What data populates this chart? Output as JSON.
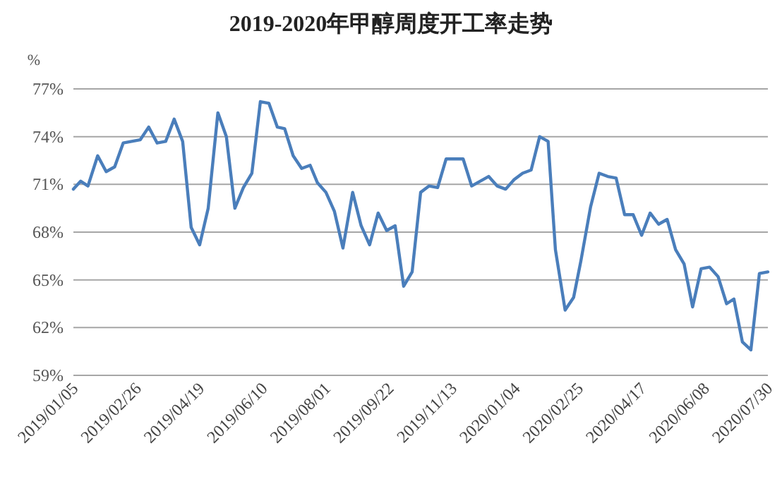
{
  "chart_data": {
    "type": "line",
    "title": "2019-2020年甲醇周度开工率走势",
    "ylabel": "%",
    "color": "#4a7ebb",
    "grid": "y",
    "marker": "none",
    "line_style": "solid",
    "x": [
      "2019-01-05",
      "2019-01-11",
      "2019-01-17",
      "2019-01-25",
      "2019-02-01",
      "2019-02-08",
      "2019-02-15",
      "2019-02-22",
      "2019-03-01",
      "2019-03-08",
      "2019-03-15",
      "2019-03-22",
      "2019-03-29",
      "2019-04-05",
      "2019-04-12",
      "2019-04-19",
      "2019-04-26",
      "2019-05-04",
      "2019-05-11",
      "2019-05-18",
      "2019-05-25",
      "2019-06-01",
      "2019-06-08",
      "2019-06-15",
      "2019-06-22",
      "2019-06-28",
      "2019-07-05",
      "2019-07-12",
      "2019-07-19",
      "2019-07-25",
      "2019-08-01",
      "2019-08-08",
      "2019-08-15",
      "2019-08-23",
      "2019-08-30",
      "2019-09-06",
      "2019-09-13",
      "2019-09-20",
      "2019-09-27",
      "2019-10-04",
      "2019-10-11",
      "2019-10-18",
      "2019-10-25",
      "2019-11-01",
      "2019-11-08",
      "2019-11-15",
      "2019-11-22",
      "2019-11-29",
      "2019-12-06",
      "2019-12-13",
      "2019-12-20",
      "2019-12-27",
      "2020-01-03",
      "2020-01-10",
      "2020-01-17",
      "2020-01-24",
      "2020-01-31",
      "2020-02-06",
      "2020-02-14",
      "2020-02-21",
      "2020-02-27",
      "2020-03-06",
      "2020-03-13",
      "2020-03-20",
      "2020-03-27",
      "2020-04-03",
      "2020-04-10",
      "2020-04-17",
      "2020-04-24",
      "2020-05-01",
      "2020-05-08",
      "2020-05-15",
      "2020-05-22",
      "2020-05-29",
      "2020-06-05",
      "2020-06-12",
      "2020-06-19",
      "2020-06-26",
      "2020-07-02",
      "2020-07-09",
      "2020-07-16",
      "2020-07-23",
      "2020-07-30"
    ],
    "values": [
      70.7,
      71.2,
      70.9,
      72.8,
      71.8,
      72.1,
      73.6,
      73.7,
      73.8,
      74.6,
      73.6,
      73.7,
      75.1,
      73.7,
      68.3,
      67.2,
      69.5,
      75.5,
      74.0,
      69.5,
      70.8,
      71.7,
      76.2,
      76.1,
      74.6,
      74.5,
      72.8,
      72.0,
      72.2,
      71.1,
      70.5,
      69.3,
      67.0,
      70.5,
      68.4,
      67.2,
      69.2,
      68.1,
      68.4,
      64.6,
      65.5,
      70.5,
      70.9,
      70.8,
      72.6,
      72.6,
      72.6,
      70.9,
      71.2,
      71.5,
      70.9,
      70.7,
      71.3,
      71.7,
      71.9,
      74.0,
      73.7,
      66.9,
      63.1,
      63.9,
      66.2,
      69.6,
      71.7,
      71.5,
      71.4,
      69.1,
      69.1,
      67.8,
      69.2,
      68.5,
      68.8,
      66.9,
      66.0,
      63.3,
      65.7,
      65.8,
      65.2,
      63.5,
      63.8,
      61.1,
      60.6,
      65.4,
      65.5
    ],
    "xlim": [
      "2019-01-05",
      "2020-07-30"
    ],
    "xticks": [
      {
        "value": "2019-01-05",
        "label": "2019/01/05"
      },
      {
        "value": "2019-02-26",
        "label": "2019/02/26"
      },
      {
        "value": "2019-04-19",
        "label": "2019/04/19"
      },
      {
        "value": "2019-06-10",
        "label": "2019/06/10"
      },
      {
        "value": "2019-08-01",
        "label": "2019/08/01"
      },
      {
        "value": "2019-09-22",
        "label": "2019/09/22"
      },
      {
        "value": "2019-11-13",
        "label": "2019/11/13"
      },
      {
        "value": "2020-01-04",
        "label": "2020/01/04"
      },
      {
        "value": "2020-02-25",
        "label": "2020/02/25"
      },
      {
        "value": "2020-04-17",
        "label": "2020/04/17"
      },
      {
        "value": "2020-06-08",
        "label": "2020/06/08"
      },
      {
        "value": "2020-07-30",
        "label": "2020/07/30"
      }
    ],
    "ylim": [
      59,
      77
    ],
    "yticks": [
      {
        "value": 59,
        "label": "59%"
      },
      {
        "value": 62,
        "label": "62%"
      },
      {
        "value": 65,
        "label": "65%"
      },
      {
        "value": 68,
        "label": "68%"
      },
      {
        "value": 71,
        "label": "71%"
      },
      {
        "value": 74,
        "label": "74%"
      },
      {
        "value": 77,
        "label": "77%"
      }
    ]
  }
}
